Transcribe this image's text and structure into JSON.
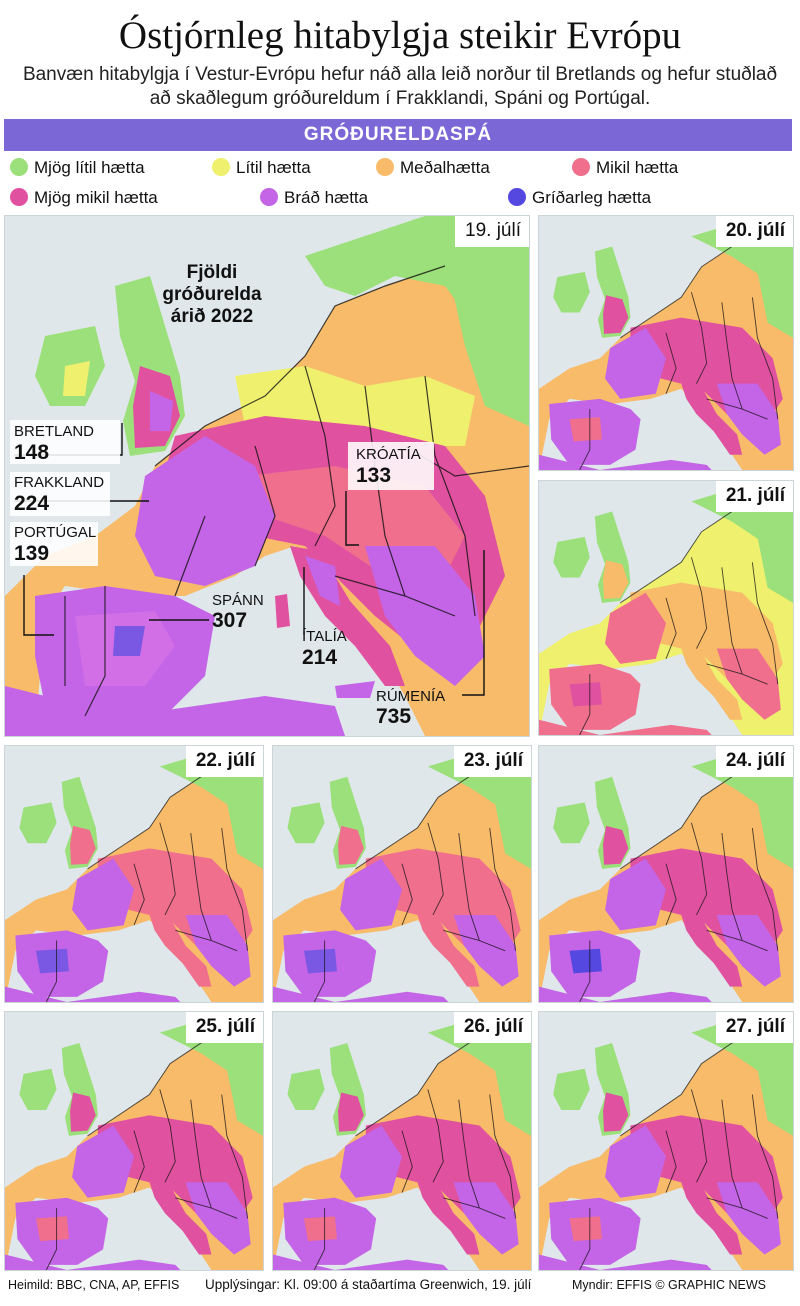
{
  "header": {
    "title": "Óstjórnleg hitabylgja steikir Evrópu",
    "subtitle": "Banvæn hitabylgja í Vestur-Evrópu hefur náð alla leið norður til Bretlands og hefur stuðlað að skaðlegum gróðureldum í Frakklandi, Spáni og Portúgal.",
    "band": "GRÓÐURELDASPÁ"
  },
  "legend": {
    "items": [
      {
        "label": "Mjög lítil hætta",
        "color": "#9be07a"
      },
      {
        "label": "Lítil hætta",
        "color": "#eef06e"
      },
      {
        "label": "Meðalhætta",
        "color": "#f8bb6a"
      },
      {
        "label": "Mikil hætta",
        "color": "#ef6f8d"
      },
      {
        "label": "Mjög mikil hætta",
        "color": "#e0529f"
      },
      {
        "label": "Bráð hætta",
        "color": "#c464e6"
      },
      {
        "label": "Gríðarleg hætta",
        "color": "#5548e0"
      }
    ]
  },
  "main_map": {
    "date": "19. júlí",
    "callout_title": [
      "Fjöldi",
      "gróðurelda",
      "árið 2022"
    ],
    "countries": [
      {
        "name": "BRETLAND",
        "count": "148"
      },
      {
        "name": "FRAKKLAND",
        "count": "224"
      },
      {
        "name": "PORTÚGAL",
        "count": "139"
      },
      {
        "name": "SPÁNN",
        "count": "307"
      },
      {
        "name": "KRÓATÍA",
        "count": "133"
      },
      {
        "name": "ÍTALÍA",
        "count": "214"
      },
      {
        "name": "RÚMENÍA",
        "count": "735"
      }
    ]
  },
  "forecast_maps": [
    {
      "date": "20. júlí"
    },
    {
      "date": "21. júlí"
    },
    {
      "date": "22. júlí"
    },
    {
      "date": "23. júlí"
    },
    {
      "date": "24. júlí"
    },
    {
      "date": "25. júlí"
    },
    {
      "date": "26. júlí"
    },
    {
      "date": "27. júlí"
    }
  ],
  "footer": {
    "source": "Heimild: BBC, CNA, AP, EFFIS",
    "info": "Upplýsingar: Kl. 09:00 á staðartíma Greenwich, 19. júlí",
    "credit": "Myndir: EFFIS © GRAPHIC NEWS"
  }
}
